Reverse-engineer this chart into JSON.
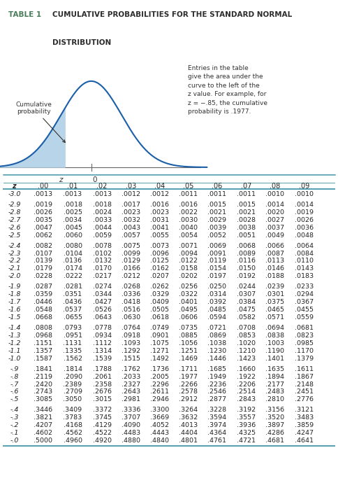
{
  "title_prefix": "TABLE 1",
  "title_main": "CUMULATIVE PROBABILITIES FOR THE STANDARD NORMAL",
  "title_line2": "DISTRIBUTION",
  "title_prefix_color": "#4a7c59",
  "title_main_color": "#2c2c2c",
  "annotation_text": "Entries in the table\ngive the area under the\ncurve to the left of the\nz value. For example, for\nz = −.85, the cumulative\nprobability is .1977.",
  "cumulative_label": "Cumulative\nprobability",
  "header_row": [
    "z",
    ".00",
    ".01",
    ".02",
    ".03",
    ".04",
    ".05",
    ".06",
    ".07",
    ".08",
    ".09"
  ],
  "z_values": [
    "-3.0",
    "-2.9",
    "-2.8",
    "-2.7",
    "-2.6",
    "-2.5",
    "-2.4",
    "-2.3",
    "-2.2",
    "-2.1",
    "-2.0",
    "-1.9",
    "-1.8",
    "-1.7",
    "-1.6",
    "-1.5",
    "-1.4",
    "-1.3",
    "-1.2",
    "-1.1",
    "-1.0",
    "-.9",
    "-.8",
    "-.7",
    "-.6",
    "-.5",
    "-.4",
    "-.3",
    "-.2",
    "-.1",
    "-.0"
  ],
  "table_data": [
    [
      ".0013",
      ".0013",
      ".0013",
      ".0012",
      ".0012",
      ".0011",
      ".0011",
      ".0011",
      ".0010",
      ".0010"
    ],
    [
      ".0019",
      ".0018",
      ".0018",
      ".0017",
      ".0016",
      ".0016",
      ".0015",
      ".0015",
      ".0014",
      ".0014"
    ],
    [
      ".0026",
      ".0025",
      ".0024",
      ".0023",
      ".0023",
      ".0022",
      ".0021",
      ".0021",
      ".0020",
      ".0019"
    ],
    [
      ".0035",
      ".0034",
      ".0033",
      ".0032",
      ".0031",
      ".0030",
      ".0029",
      ".0028",
      ".0027",
      ".0026"
    ],
    [
      ".0047",
      ".0045",
      ".0044",
      ".0043",
      ".0041",
      ".0040",
      ".0039",
      ".0038",
      ".0037",
      ".0036"
    ],
    [
      ".0062",
      ".0060",
      ".0059",
      ".0057",
      ".0055",
      ".0054",
      ".0052",
      ".0051",
      ".0049",
      ".0048"
    ],
    [
      ".0082",
      ".0080",
      ".0078",
      ".0075",
      ".0073",
      ".0071",
      ".0069",
      ".0068",
      ".0066",
      ".0064"
    ],
    [
      ".0107",
      ".0104",
      ".0102",
      ".0099",
      ".0096",
      ".0094",
      ".0091",
      ".0089",
      ".0087",
      ".0084"
    ],
    [
      ".0139",
      ".0136",
      ".0132",
      ".0129",
      ".0125",
      ".0122",
      ".0119",
      ".0116",
      ".0113",
      ".0110"
    ],
    [
      ".0179",
      ".0174",
      ".0170",
      ".0166",
      ".0162",
      ".0158",
      ".0154",
      ".0150",
      ".0146",
      ".0143"
    ],
    [
      ".0228",
      ".0222",
      ".0217",
      ".0212",
      ".0207",
      ".0202",
      ".0197",
      ".0192",
      ".0188",
      ".0183"
    ],
    [
      ".0287",
      ".0281",
      ".0274",
      ".0268",
      ".0262",
      ".0256",
      ".0250",
      ".0244",
      ".0239",
      ".0233"
    ],
    [
      ".0359",
      ".0351",
      ".0344",
      ".0336",
      ".0329",
      ".0322",
      ".0314",
      ".0307",
      ".0301",
      ".0294"
    ],
    [
      ".0446",
      ".0436",
      ".0427",
      ".0418",
      ".0409",
      ".0401",
      ".0392",
      ".0384",
      ".0375",
      ".0367"
    ],
    [
      ".0548",
      ".0537",
      ".0526",
      ".0516",
      ".0505",
      ".0495",
      ".0485",
      ".0475",
      ".0465",
      ".0455"
    ],
    [
      ".0668",
      ".0655",
      ".0643",
      ".0630",
      ".0618",
      ".0606",
      ".0594",
      ".0582",
      ".0571",
      ".0559"
    ],
    [
      ".0808",
      ".0793",
      ".0778",
      ".0764",
      ".0749",
      ".0735",
      ".0721",
      ".0708",
      ".0694",
      ".0681"
    ],
    [
      ".0968",
      ".0951",
      ".0934",
      ".0918",
      ".0901",
      ".0885",
      ".0869",
      ".0853",
      ".0838",
      ".0823"
    ],
    [
      ".1151",
      ".1131",
      ".1112",
      ".1093",
      ".1075",
      ".1056",
      ".1038",
      ".1020",
      ".1003",
      ".0985"
    ],
    [
      ".1357",
      ".1335",
      ".1314",
      ".1292",
      ".1271",
      ".1251",
      ".1230",
      ".1210",
      ".1190",
      ".1170"
    ],
    [
      ".1587",
      ".1562",
      ".1539",
      ".1515",
      ".1492",
      ".1469",
      ".1446",
      ".1423",
      ".1401",
      ".1379"
    ],
    [
      ".1841",
      ".1814",
      ".1788",
      ".1762",
      ".1736",
      ".1711",
      ".1685",
      ".1660",
      ".1635",
      ".1611"
    ],
    [
      ".2119",
      ".2090",
      ".2061",
      ".2033",
      ".2005",
      ".1977",
      ".1949",
      ".1922",
      ".1894",
      ".1867"
    ],
    [
      ".2420",
      ".2389",
      ".2358",
      ".2327",
      ".2296",
      ".2266",
      ".2236",
      ".2206",
      ".2177",
      ".2148"
    ],
    [
      ".2743",
      ".2709",
      ".2676",
      ".2643",
      ".2611",
      ".2578",
      ".2546",
      ".2514",
      ".2483",
      ".2451"
    ],
    [
      ".3085",
      ".3050",
      ".3015",
      ".2981",
      ".2946",
      ".2912",
      ".2877",
      ".2843",
      ".2810",
      ".2776"
    ],
    [
      ".3446",
      ".3409",
      ".3372",
      ".3336",
      ".3300",
      ".3264",
      ".3228",
      ".3192",
      ".3156",
      ".3121"
    ],
    [
      ".3821",
      ".3783",
      ".3745",
      ".3707",
      ".3669",
      ".3632",
      ".3594",
      ".3557",
      ".3520",
      ".3483"
    ],
    [
      ".4207",
      ".4168",
      ".4129",
      ".4090",
      ".4052",
      ".4013",
      ".3974",
      ".3936",
      ".3897",
      ".3859"
    ],
    [
      ".4602",
      ".4562",
      ".4522",
      ".4483",
      ".4443",
      ".4404",
      ".4364",
      ".4325",
      ".4286",
      ".4247"
    ],
    [
      ".5000",
      ".4960",
      ".4920",
      ".4880",
      ".4840",
      ".4801",
      ".4761",
      ".4721",
      ".4681",
      ".4641"
    ]
  ],
  "group_separators": [
    1,
    6,
    11,
    16,
    21,
    26
  ],
  "line_color": "#5ba3b0",
  "curve_color": "#1a5fa8",
  "fill_color": "#b8d4e8",
  "bg_color": "#ffffff"
}
